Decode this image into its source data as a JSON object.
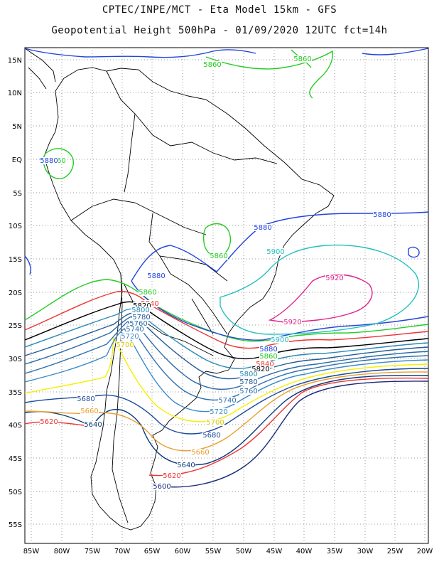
{
  "title_line1": "CPTEC/INPE/MCT -  Eta Model 15km - GFS",
  "title_line2": "Geopotential Height 500hPa - 01/09/2020 12UTC fct=14h",
  "lat_labels": [
    "15N",
    "10N",
    "5N",
    "EQ",
    "5S",
    "10S",
    "15S",
    "20S",
    "25S",
    "30S",
    "35S",
    "40S",
    "45S",
    "50S",
    "55S"
  ],
  "lon_labels": [
    "85W",
    "80W",
    "75W",
    "70W",
    "65W",
    "60W",
    "55W",
    "50W",
    "45W",
    "40W",
    "35W",
    "30W",
    "25W",
    "20W"
  ],
  "contour_colors": {
    "5600": "#1a2a7a",
    "5620": "#ee3333",
    "5640": "#0a3a7c",
    "5660": "#e8a030",
    "5680": "#1a4a9a",
    "5700": "#f5f000",
    "5720": "#3a8ac8",
    "5740": "#3070b0",
    "5760": "#2a6aa8",
    "5780": "#245a98",
    "5800": "#2a8ab8",
    "5820": "#000000",
    "5840": "#ee3333",
    "5860": "#22cc22",
    "5880": "#2244dd",
    "5900": "#22c0c0",
    "5920": "#e0208a"
  },
  "contour_labels": [
    {
      "text": "5860",
      "color_key": "5860"
    },
    {
      "text": "5860",
      "color_key": "5860"
    },
    {
      "text": "5860",
      "color_key": "5860"
    },
    {
      "text": "5880",
      "color_key": "5880"
    },
    {
      "text": "5860",
      "color_key": "5860"
    },
    {
      "text": "5880",
      "color_key": "5880"
    },
    {
      "text": "5900",
      "color_key": "5900"
    },
    {
      "text": "5880",
      "color_key": "5880"
    },
    {
      "text": "5860",
      "color_key": "5860"
    },
    {
      "text": "5840",
      "color_key": "5840"
    },
    {
      "text": "5820",
      "color_key": "5820"
    },
    {
      "text": "5800",
      "color_key": "5800"
    },
    {
      "text": "5780",
      "color_key": "5780"
    },
    {
      "text": "5760",
      "color_key": "5760"
    },
    {
      "text": "5740",
      "color_key": "5740"
    },
    {
      "text": "5720",
      "color_key": "5720"
    },
    {
      "text": "5700",
      "color_key": "5700"
    },
    {
      "text": "5920",
      "color_key": "5920"
    },
    {
      "text": "5920",
      "color_key": "5920"
    },
    {
      "text": "5900",
      "color_key": "5900"
    },
    {
      "text": "5880",
      "color_key": "5880"
    },
    {
      "text": "5860",
      "color_key": "5860"
    },
    {
      "text": "5840",
      "color_key": "5840"
    },
    {
      "text": "5820",
      "color_key": "5820"
    },
    {
      "text": "5800",
      "color_key": "5800"
    },
    {
      "text": "5780",
      "color_key": "5780"
    },
    {
      "text": "5760",
      "color_key": "5760"
    },
    {
      "text": "5740",
      "color_key": "5740"
    },
    {
      "text": "5720",
      "color_key": "5720"
    },
    {
      "text": "5700",
      "color_key": "5700"
    },
    {
      "text": "5680",
      "color_key": "5680"
    },
    {
      "text": "5660",
      "color_key": "5660"
    },
    {
      "text": "5640",
      "color_key": "5640"
    },
    {
      "text": "5620",
      "color_key": "5620"
    },
    {
      "text": "5600",
      "color_key": "5600"
    },
    {
      "text": "5680",
      "color_key": "5680"
    },
    {
      "text": "5660",
      "color_key": "5660"
    },
    {
      "text": "5640",
      "color_key": "5640"
    },
    {
      "text": "5620",
      "color_key": "5620"
    },
    {
      "text": "5880",
      "color_key": "5880"
    }
  ]
}
